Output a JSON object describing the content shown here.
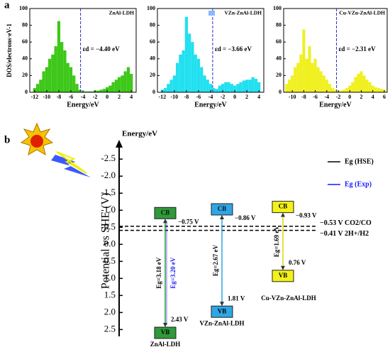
{
  "panel_labels": [
    "a",
    "b"
  ],
  "chart_data": [
    {
      "type": "dos",
      "label": "ZnAl-LDH",
      "color": "#3ec81a",
      "ylabel": "DOS/electrons·eV-1",
      "xlabel": "Energy/eV",
      "x": [
        -12,
        -11.5,
        -11,
        -10.5,
        -10,
        -9.5,
        -9,
        -8.5,
        -8,
        -7.5,
        -7,
        -6.5,
        -6,
        -5.5,
        -5,
        -4.5,
        -4,
        -3.5,
        -3,
        -2.5,
        -2,
        -1.5,
        -1,
        -0.5,
        0,
        0.5,
        1,
        1.5,
        2,
        2.5,
        3,
        3.5,
        4
      ],
      "values": [
        5,
        10,
        15,
        25,
        30,
        40,
        45,
        55,
        85,
        60,
        50,
        35,
        30,
        20,
        10,
        3,
        1,
        1,
        1,
        1,
        2,
        2,
        3,
        4,
        6,
        8,
        12,
        15,
        18,
        20,
        25,
        30,
        22
      ],
      "xlim": [
        -12.8,
        4.8
      ],
      "xticks": [
        -12,
        -10,
        -8,
        -6,
        -4,
        -2,
        0,
        2,
        4
      ],
      "ylim": [
        0,
        100
      ],
      "yticks": [
        0,
        20,
        40,
        60,
        80,
        100
      ],
      "ed": {
        "value": -4.4,
        "label": "εd = −4.40 eV"
      }
    },
    {
      "type": "dos",
      "label": "VZn-ZnAl-LDH",
      "color": "#22e0f0",
      "xlabel": "Energy/eV",
      "x": [
        -12,
        -11.5,
        -11,
        -10.5,
        -10,
        -9.5,
        -9,
        -8.5,
        -8,
        -7.5,
        -7,
        -6.5,
        -6,
        -5.5,
        -5,
        -4.5,
        -4,
        -3.5,
        -3,
        -2.5,
        -2,
        -1.5,
        -1,
        -0.5,
        0,
        0.5,
        1,
        1.5,
        2,
        2.5,
        3,
        3.5,
        4
      ],
      "values": [
        3,
        5,
        10,
        15,
        20,
        35,
        45,
        50,
        90,
        70,
        60,
        45,
        40,
        30,
        20,
        15,
        10,
        5,
        4,
        8,
        10,
        12,
        12,
        10,
        8,
        10,
        12,
        14,
        15,
        15,
        18,
        16,
        12
      ],
      "xlim": [
        -12.8,
        4.8
      ],
      "xticks": [
        -12,
        -10,
        -8,
        -6,
        -4,
        -2,
        0,
        2,
        4
      ],
      "ylim": [
        0,
        100
      ],
      "yticks": [
        0,
        20,
        40,
        60,
        80,
        100
      ],
      "ed": {
        "value": -3.66,
        "label": "εd = −3.66 eV"
      }
    },
    {
      "type": "dos",
      "label": "Cu-VZn-ZnAl-LDH",
      "color": "#f0f020",
      "xlabel": "Energy/eV",
      "x": [
        -11,
        -10.5,
        -10,
        -9.5,
        -9,
        -8.5,
        -8,
        -7.5,
        -7,
        -6.5,
        -6,
        -5.5,
        -5,
        -4.5,
        -4,
        -3.5,
        -3,
        -2.5,
        -2,
        -1.5,
        -1,
        -0.5,
        0,
        0.5,
        1,
        1.5,
        2,
        2.5,
        3,
        3.5,
        4,
        4.5,
        5,
        5.5,
        6
      ],
      "values": [
        10,
        15,
        20,
        30,
        35,
        45,
        75,
        40,
        55,
        35,
        40,
        30,
        25,
        20,
        15,
        10,
        5,
        3,
        2,
        2,
        3,
        5,
        8,
        12,
        18,
        22,
        25,
        20,
        15,
        12,
        8,
        6,
        5,
        4,
        3
      ],
      "xlim": [
        -11.5,
        6.5
      ],
      "xticks": [
        -10,
        -8,
        -6,
        -4,
        -2,
        0,
        2,
        4,
        6
      ],
      "ylim": [
        0,
        100
      ],
      "yticks": [
        0,
        20,
        40,
        60,
        80,
        100
      ],
      "ed": {
        "value": -2.31,
        "label": "εd = −2.31 eV"
      }
    },
    {
      "type": "band",
      "ylabel": "Potential vs SHE (V)",
      "axis_label": "Energy/eV",
      "ylim": [
        -2.9,
        2.7
      ],
      "yticks": [
        -2.5,
        {
          "value": -2,
          "label": "-2.0"
        },
        -1.5,
        {
          "value": -1,
          "label": "-1.0"
        },
        -0.5,
        {
          "value": 0,
          "label": "0.0"
        },
        0.5,
        {
          "value": 1,
          "label": "1.0"
        },
        1.5,
        {
          "value": 2,
          "label": "2.0"
        },
        2.5
      ],
      "materials": [
        {
          "name": "ZnAl-LDH",
          "color": "#2f9a3a",
          "cb_text": "CB",
          "vb_text": "VB",
          "cb": -0.75,
          "cb_label": "−0.75 V",
          "vb": 2.43,
          "vb_label": "2.43 V",
          "eg": {
            "value": 3.18,
            "label": "Eg=3.18 eV"
          },
          "eg_exp": {
            "value": 3.2,
            "label": "Eg=3.20 eV"
          }
        },
        {
          "name": "VZn-ZnAl-LDH",
          "color": "#2ea6e6",
          "cb_text": "CB",
          "vb_text": "VB",
          "cb": -0.86,
          "cb_label": "−0.86 V",
          "vb": 1.81,
          "vb_label": "1.81 V",
          "eg": {
            "value": 2.67,
            "label": "Eg=2.67 eV"
          }
        },
        {
          "name": "Cu-VZn-ZnAl-LDH",
          "color": "#f2f21a",
          "cb_text": "CB",
          "vb_text": "VB",
          "cb": -0.93,
          "cb_label": "−0.93 V",
          "vb": 0.76,
          "vb_label": "0.76 V",
          "eg": {
            "value": 1.69,
            "label": "Eg=1.69 eV"
          }
        }
      ],
      "references": [
        {
          "value": -0.53,
          "label": "−0.53 V CO2/CO"
        },
        {
          "value": -0.41,
          "label": "−0.41 V 2H+/H2"
        }
      ],
      "legend": [
        {
          "name": "Eg (HSE)",
          "color": "#000000"
        },
        {
          "name": "Eg (Exp)",
          "color": "#1a1aff"
        }
      ]
    }
  ]
}
